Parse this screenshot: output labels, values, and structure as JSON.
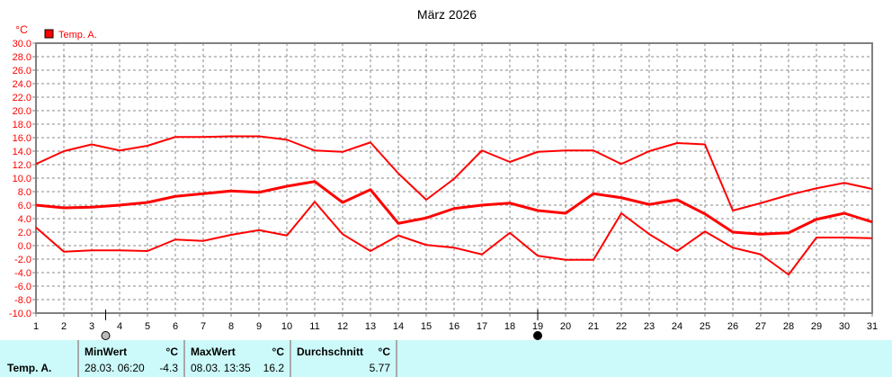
{
  "chart_data": {
    "type": "line",
    "title": "März 2026",
    "ylabel": "°C",
    "xlim": [
      1,
      31
    ],
    "ylim": [
      -10,
      30
    ],
    "ytick_step": 2,
    "grid": true,
    "legend_position": "top-left",
    "legend": [
      {
        "name": "Temp. A.",
        "color": "#ff0000"
      }
    ],
    "x": [
      1,
      2,
      3,
      4,
      5,
      6,
      7,
      8,
      9,
      10,
      11,
      12,
      13,
      14,
      15,
      16,
      17,
      18,
      19,
      20,
      21,
      22,
      23,
      24,
      25,
      26,
      27,
      28,
      29,
      30,
      31
    ],
    "series": [
      {
        "role": "max",
        "color": "#ff0000",
        "values": [
          12.1,
          14.0,
          15.0,
          14.1,
          14.8,
          16.1,
          16.1,
          16.2,
          16.2,
          15.7,
          14.1,
          13.9,
          15.3,
          10.7,
          6.8,
          9.9,
          14.1,
          12.4,
          13.9,
          14.1,
          14.1,
          12.1,
          14.0,
          15.2,
          15.0,
          5.2,
          6.3,
          7.5,
          8.5,
          9.3,
          8.4
        ]
      },
      {
        "role": "mean",
        "color": "#ff0000",
        "values": [
          6.0,
          5.6,
          5.7,
          6.0,
          6.4,
          7.3,
          7.7,
          8.1,
          7.9,
          8.8,
          9.5,
          6.4,
          8.3,
          3.3,
          4.1,
          5.5,
          6.0,
          6.3,
          5.2,
          4.8,
          7.7,
          7.1,
          6.1,
          6.8,
          4.7,
          2.0,
          1.7,
          1.9,
          3.9,
          4.8,
          3.5
        ]
      },
      {
        "role": "min",
        "color": "#ff0000",
        "values": [
          2.7,
          -0.9,
          -0.7,
          -0.7,
          -0.8,
          0.9,
          0.7,
          1.6,
          2.3,
          1.5,
          6.5,
          1.7,
          -0.8,
          1.5,
          0.1,
          -0.3,
          -1.3,
          1.9,
          -1.5,
          -2.1,
          -2.1,
          4.8,
          1.7,
          -0.8,
          2.1,
          -0.3,
          -1.3,
          -4.3,
          1.2,
          1.2,
          1.1
        ]
      }
    ],
    "moon_phases": [
      {
        "day": 3.5,
        "phase": "full-moon-icon"
      },
      {
        "day": 19,
        "phase": "new-moon-icon"
      }
    ]
  },
  "summary": {
    "row_label": "Temp. A.",
    "min": {
      "label": "MinWert",
      "unit": "°C",
      "datetime": "28.03.  06:20",
      "value": "-4.3"
    },
    "max": {
      "label": "MaxWert",
      "unit": "°C",
      "datetime": "08.03.  13:35",
      "value": "16.2"
    },
    "avg": {
      "label": "Durchschnitt",
      "unit": "°C",
      "value": "5.77"
    }
  }
}
